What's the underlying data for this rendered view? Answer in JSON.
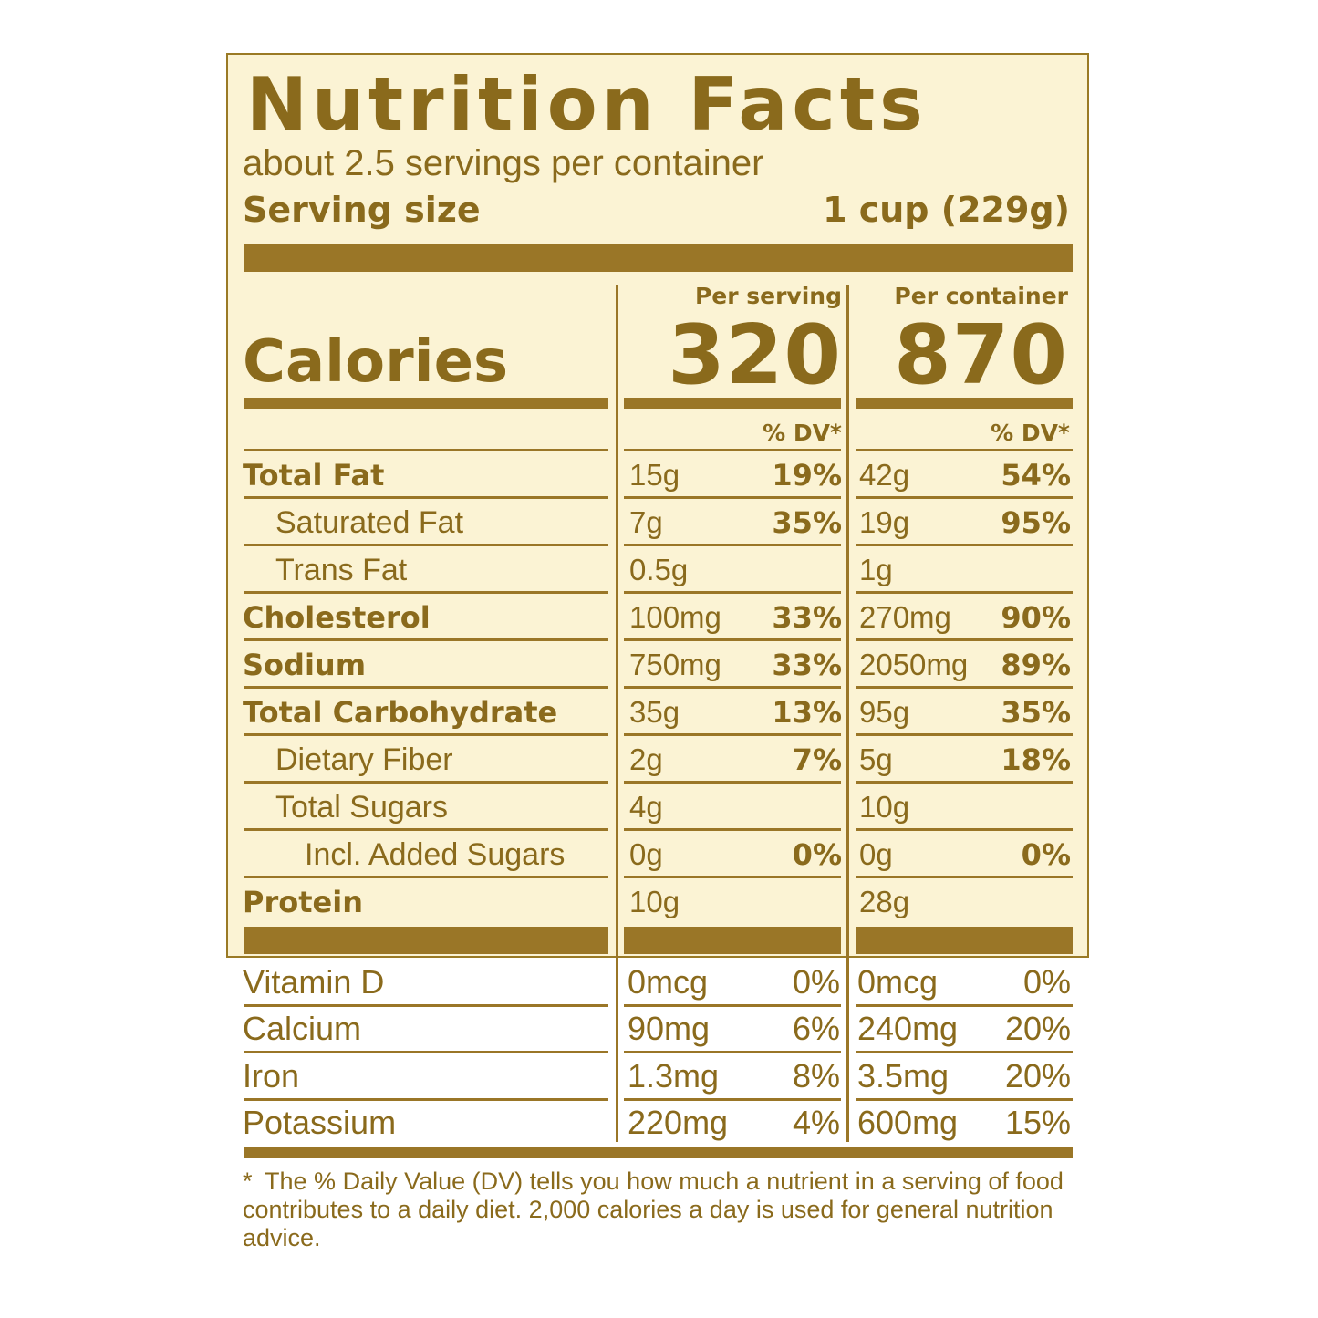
{
  "title": "Nutrition Facts",
  "servings_per_container": "about 2.5 servings per container",
  "serving_size": {
    "label": "Serving size",
    "value": "1 cup (229g)"
  },
  "columns": {
    "per_serving": "Per serving",
    "per_container": "Per container"
  },
  "calories": {
    "label": "Calories",
    "per_serving": "320",
    "per_container": "870"
  },
  "dv_header": "% DV*",
  "nutrients": [
    {
      "label": "Total Fat",
      "serving_amount": "15g",
      "serving_dv": "19%",
      "container_amount": "42g",
      "container_dv": "54%"
    },
    {
      "label": "Saturated Fat",
      "serving_amount": "7g",
      "serving_dv": "35%",
      "container_amount": "19g",
      "container_dv": "95%"
    },
    {
      "label": "Trans Fat",
      "serving_amount": "0.5g",
      "serving_dv": "",
      "container_amount": "1g",
      "container_dv": ""
    },
    {
      "label": "Cholesterol",
      "serving_amount": "100mg",
      "serving_dv": "33%",
      "container_amount": "270mg",
      "container_dv": "90%"
    },
    {
      "label": "Sodium",
      "serving_amount": "750mg",
      "serving_dv": "33%",
      "container_amount": "2050mg",
      "container_dv": "89%"
    },
    {
      "label": "Total Carbohydrate",
      "serving_amount": "35g",
      "serving_dv": "13%",
      "container_amount": "95g",
      "container_dv": "35%"
    },
    {
      "label": "Dietary Fiber",
      "serving_amount": "2g",
      "serving_dv": "7%",
      "container_amount": "5g",
      "container_dv": "18%"
    },
    {
      "label": "Total Sugars",
      "serving_amount": "4g",
      "serving_dv": "",
      "container_amount": "10g",
      "container_dv": ""
    },
    {
      "label": "Incl. Added Sugars",
      "serving_amount": "0g",
      "serving_dv": "0%",
      "container_amount": "0g",
      "container_dv": "0%"
    },
    {
      "label": "Protein",
      "serving_amount": "10g",
      "serving_dv": "",
      "container_amount": "28g",
      "container_dv": ""
    }
  ],
  "vitamins": [
    {
      "label": "Vitamin D",
      "serving_amount": "0mcg",
      "serving_dv": "0%",
      "container_amount": "0mcg",
      "container_dv": "0%"
    },
    {
      "label": "Calcium",
      "serving_amount": "90mg",
      "serving_dv": "6%",
      "container_amount": "240mg",
      "container_dv": "20%"
    },
    {
      "label": "Iron",
      "serving_amount": "1.3mg",
      "serving_dv": "8%",
      "container_amount": "3.5mg",
      "container_dv": "20%"
    },
    {
      "label": "Potassium",
      "serving_amount": "220mg",
      "serving_dv": "4%",
      "container_amount": "600mg",
      "container_dv": "15%"
    }
  ],
  "footnote_marker": "*",
  "footnote": "The % Daily Value (DV) tells you how much a nutrient in a serving of food contributes to a daily diet. 2,000 calories a day is used for general nutrition advice.",
  "colors": {
    "ink": "#8a6a1c",
    "rule": "#9a7627",
    "background": "#fbf3d4"
  }
}
